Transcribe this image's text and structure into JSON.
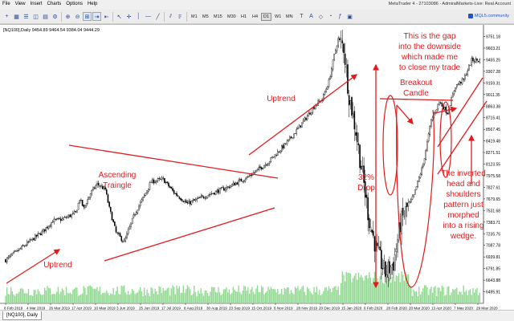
{
  "window": {
    "title": "MetaTrader 4 - 27103086 - AdmiralMarkets-Live: Real Account",
    "menu": [
      "File",
      "View",
      "Insert",
      "Charts",
      "Options",
      "Help"
    ]
  },
  "toolbar": {
    "timeframes": [
      "M1",
      "M5",
      "M15",
      "M30",
      "H1",
      "H4",
      "D1",
      "W1",
      "MN"
    ],
    "active_timeframe": "D1",
    "mql_link": "MQL5.community",
    "tool_icons": [
      "new-chart-icon",
      "profiles-icon",
      "market-watch-icon",
      "navigator-icon",
      "terminal-icon",
      "tester-icon",
      "zoom-in-icon",
      "zoom-out-icon",
      "tile-icon",
      "autoscroll-icon",
      "chart-shift-icon",
      "cursor-icon",
      "crosshair-icon",
      "vertical-line-icon",
      "horizontal-line-icon",
      "trendline-icon",
      "channel-icon",
      "fibonacci-icon",
      "text-icon",
      "label-icon",
      "shapes-icon",
      "period-icon",
      "indicators-icon",
      "templates-icon"
    ]
  },
  "chart": {
    "header": "[NQ100],Daily  9454.89 9464.54 9384.04 9444.29",
    "tab_label": "[NQ100], Daily",
    "colors": {
      "candle": "#000000",
      "volume": "#90d890",
      "annotation": "#e31a1c",
      "grid": "#ffffff"
    }
  },
  "chart_data": {
    "type": "candlestick",
    "symbol": "[NQ100]",
    "timeframe": "Daily",
    "last_bar": {
      "open": 9454.89,
      "high": 9464.54,
      "low": 9384.04,
      "close": 9444.29
    },
    "ylim": [
      6348,
      9900
    ],
    "y_ticks": [
      9751.18,
      9603.21,
      9455.25,
      9307.28,
      9159.31,
      9011.35,
      8863.38,
      8715.41,
      8567.45,
      8419.48,
      8271.51,
      8123.55,
      7975.58,
      7827.61,
      7679.65,
      7531.68,
      7383.71,
      7235.75,
      7087.78,
      6939.81,
      6791.85,
      6643.88,
      6495.91
    ],
    "x_ticks": [
      "8 Feb 2019",
      "4 Mar 2019",
      "26 Mar 2019",
      "17 Apr 2019",
      "10 May 2019",
      "3 Jun 2019",
      "25 Jun 2019",
      "17 Jul 2019",
      "8 Aug 2019",
      "30 Aug 2019",
      "23 Sep 2019",
      "15 Oct 2019",
      "6 Nov 2019",
      "28 Nov 2019",
      "20 Dec 2019",
      "15 Jan 2020",
      "6 Feb 2020",
      "28 Feb 2020",
      "20 Mar 2020",
      "13 Apr 2020",
      "7 May 2020",
      "29 May 2020"
    ],
    "path_anchors": {
      "index": [
        0,
        28,
        35,
        42,
        52,
        55,
        58,
        63,
        68,
        74,
        77,
        82,
        88,
        96,
        103,
        108,
        117,
        125,
        135,
        150,
        165,
        180,
        195,
        210,
        222,
        230,
        235,
        240,
        244,
        247,
        251,
        255,
        260,
        265,
        270,
        276,
        282,
        288,
        293
      ],
      "close": [
        6900,
        7270,
        7400,
        7420,
        7500,
        7680,
        7560,
        7750,
        7870,
        7800,
        7560,
        7250,
        7130,
        7500,
        7720,
        7900,
        7930,
        7760,
        7620,
        7730,
        7830,
        7960,
        8150,
        8420,
        8690,
        8880,
        8950,
        9180,
        9510,
        9720,
        9620,
        9000,
        8550,
        7980,
        7400,
        6990,
        6730,
        6860,
        7360
      ]
    },
    "path_anchors_tail": {
      "index": [
        298,
        303,
        310,
        316,
        322,
        328,
        334,
        340,
        346,
        352
      ],
      "close": [
        7560,
        7720,
        8120,
        8680,
        8920,
        8780,
        9120,
        9200,
        9450,
        9444.29
      ]
    }
  },
  "annotations": [
    {
      "text": "Uptrend",
      "name": "label-uptrend-left"
    },
    {
      "text": "Ascending",
      "name": "label-ascending"
    },
    {
      "text": "Traingle",
      "name": "label-triangle"
    },
    {
      "text": "Uptrend",
      "name": "label-uptrend-mid"
    },
    {
      "text": "32%",
      "name": "label-drop-pct"
    },
    {
      "text": "Drop",
      "name": "label-drop"
    },
    {
      "text": "This is the gap",
      "name": "label-gap-1"
    },
    {
      "text": "into the downside",
      "name": "label-gap-2"
    },
    {
      "text": "which made me",
      "name": "label-gap-3"
    },
    {
      "text": "to close my trade",
      "name": "label-gap-4"
    },
    {
      "text": "Breakout",
      "name": "label-breakout-1"
    },
    {
      "text": "Candle",
      "name": "label-breakout-2"
    },
    {
      "text": "The inverted",
      "name": "label-hs-1"
    },
    {
      "text": "head and",
      "name": "label-hs-2"
    },
    {
      "text": "shoulders",
      "name": "label-hs-3"
    },
    {
      "text": "pattern just",
      "name": "label-hs-4"
    },
    {
      "text": "morphed",
      "name": "label-hs-5"
    },
    {
      "text": "into a rising",
      "name": "label-hs-6"
    },
    {
      "text": "wedge.",
      "name": "label-hs-7"
    }
  ]
}
